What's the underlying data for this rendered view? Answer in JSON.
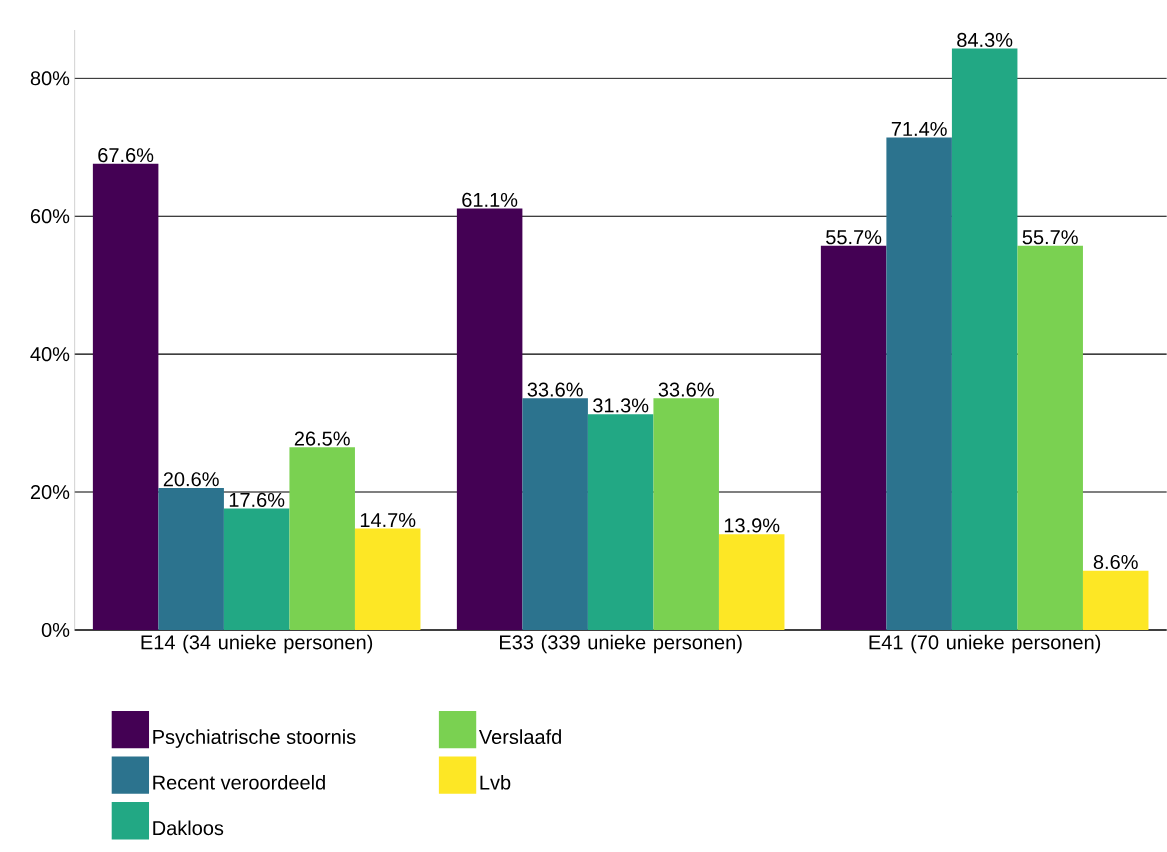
{
  "chart_data": {
    "type": "bar",
    "categories": [
      "E14 (34 unieke personen)",
      "E33 (339 unieke personen)",
      "E41 (70 unieke personen)"
    ],
    "series": [
      {
        "name": "Psychiatrische stoornis",
        "color": "#440154",
        "values": [
          67.6,
          61.1,
          55.7
        ],
        "value_labels": [
          "67.6%",
          "61.1%",
          "55.7%"
        ]
      },
      {
        "name": "Recent veroordeeld",
        "color": "#2c738e",
        "values": [
          20.6,
          33.6,
          71.4
        ],
        "value_labels": [
          "20.6%",
          "33.6%",
          "71.4%"
        ]
      },
      {
        "name": "Dakloos",
        "color": "#22a884",
        "values": [
          17.6,
          31.3,
          84.3
        ],
        "value_labels": [
          "17.6%",
          "31.3%",
          "84.3%"
        ]
      },
      {
        "name": "Verslaafd",
        "color": "#7ad151",
        "values": [
          26.5,
          33.6,
          55.7
        ],
        "value_labels": [
          "26.5%",
          "33.6%",
          "55.7%"
        ]
      },
      {
        "name": "Lvb",
        "color": "#fde725",
        "values": [
          14.7,
          13.9,
          8.6
        ],
        "value_labels": [
          "14.7%",
          "13.9%",
          "8.6%"
        ]
      }
    ],
    "ylim": [
      0,
      87
    ],
    "yticks": [
      {
        "value": 0,
        "label": "0%"
      },
      {
        "value": 20,
        "label": "20%"
      },
      {
        "value": 40,
        "label": "40%"
      },
      {
        "value": 60,
        "label": "60%"
      },
      {
        "value": 80,
        "label": "80%"
      }
    ],
    "grid": "y",
    "legend": "bottom"
  }
}
